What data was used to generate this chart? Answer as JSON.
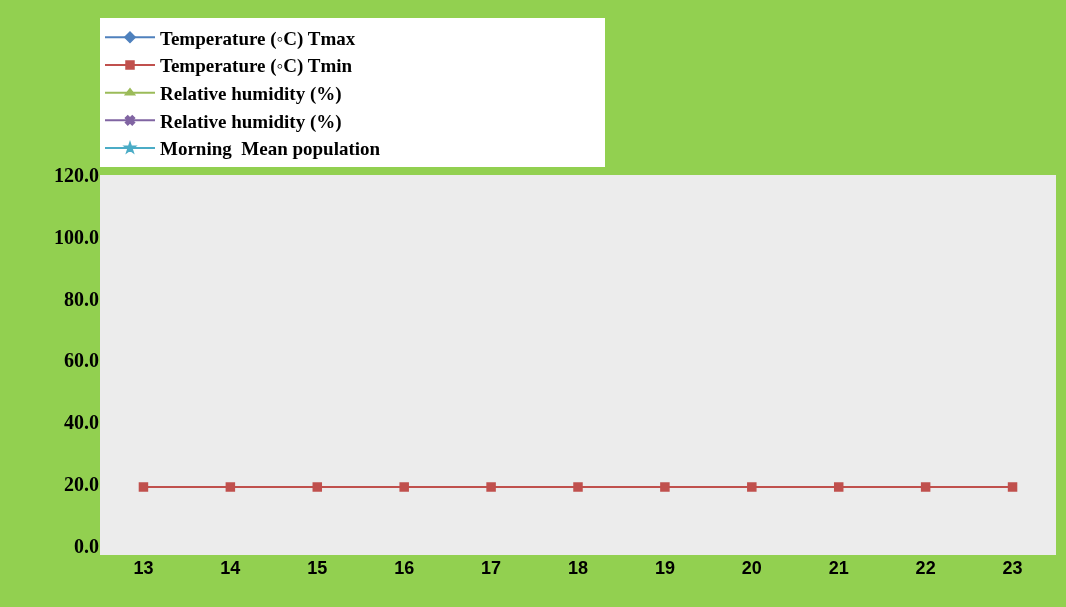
{
  "chart_data": {
    "type": "line",
    "categories": [
      "13",
      "14",
      "15",
      "16",
      "17",
      "18",
      "19",
      "20",
      "21",
      "22",
      "23"
    ],
    "series": [
      {
        "name": "Temperature (◦C) Tmax",
        "color": "#4f81bd",
        "marker": "diamond",
        "values": [
          null,
          null,
          null,
          null,
          null,
          null,
          null,
          null,
          null,
          null,
          null
        ]
      },
      {
        "name": "Temperature (◦C) Tmin",
        "color": "#c0504d",
        "marker": "square",
        "values": [
          19,
          19,
          19,
          19,
          19,
          19,
          19,
          19,
          19,
          19,
          19
        ]
      },
      {
        "name": "Relative humidity (%)",
        "color": "#9bbb59",
        "marker": "triangle",
        "values": [
          null,
          null,
          null,
          null,
          null,
          null,
          null,
          null,
          null,
          null,
          null
        ]
      },
      {
        "name": "Relative humidity (%)",
        "color": "#8064a2",
        "marker": "cross",
        "values": [
          null,
          null,
          null,
          null,
          null,
          null,
          null,
          null,
          null,
          null,
          null
        ]
      },
      {
        "name": "Morning  Mean population",
        "color": "#4bacc6",
        "marker": "star",
        "values": [
          null,
          null,
          null,
          null,
          null,
          null,
          null,
          null,
          null,
          null,
          null
        ]
      }
    ],
    "ylim": [
      -3,
      120
    ],
    "yticks": [
      {
        "value": 0,
        "label": "0.0"
      },
      {
        "value": 20,
        "label": "20.0"
      },
      {
        "value": 40,
        "label": "40.0"
      },
      {
        "value": 60,
        "label": "60.0"
      },
      {
        "value": 80,
        "label": "80.0"
      },
      {
        "value": 100,
        "label": "100.0"
      },
      {
        "value": 120,
        "label": "120.0"
      }
    ],
    "grid": false,
    "legend": "top",
    "line_style": "solid"
  }
}
